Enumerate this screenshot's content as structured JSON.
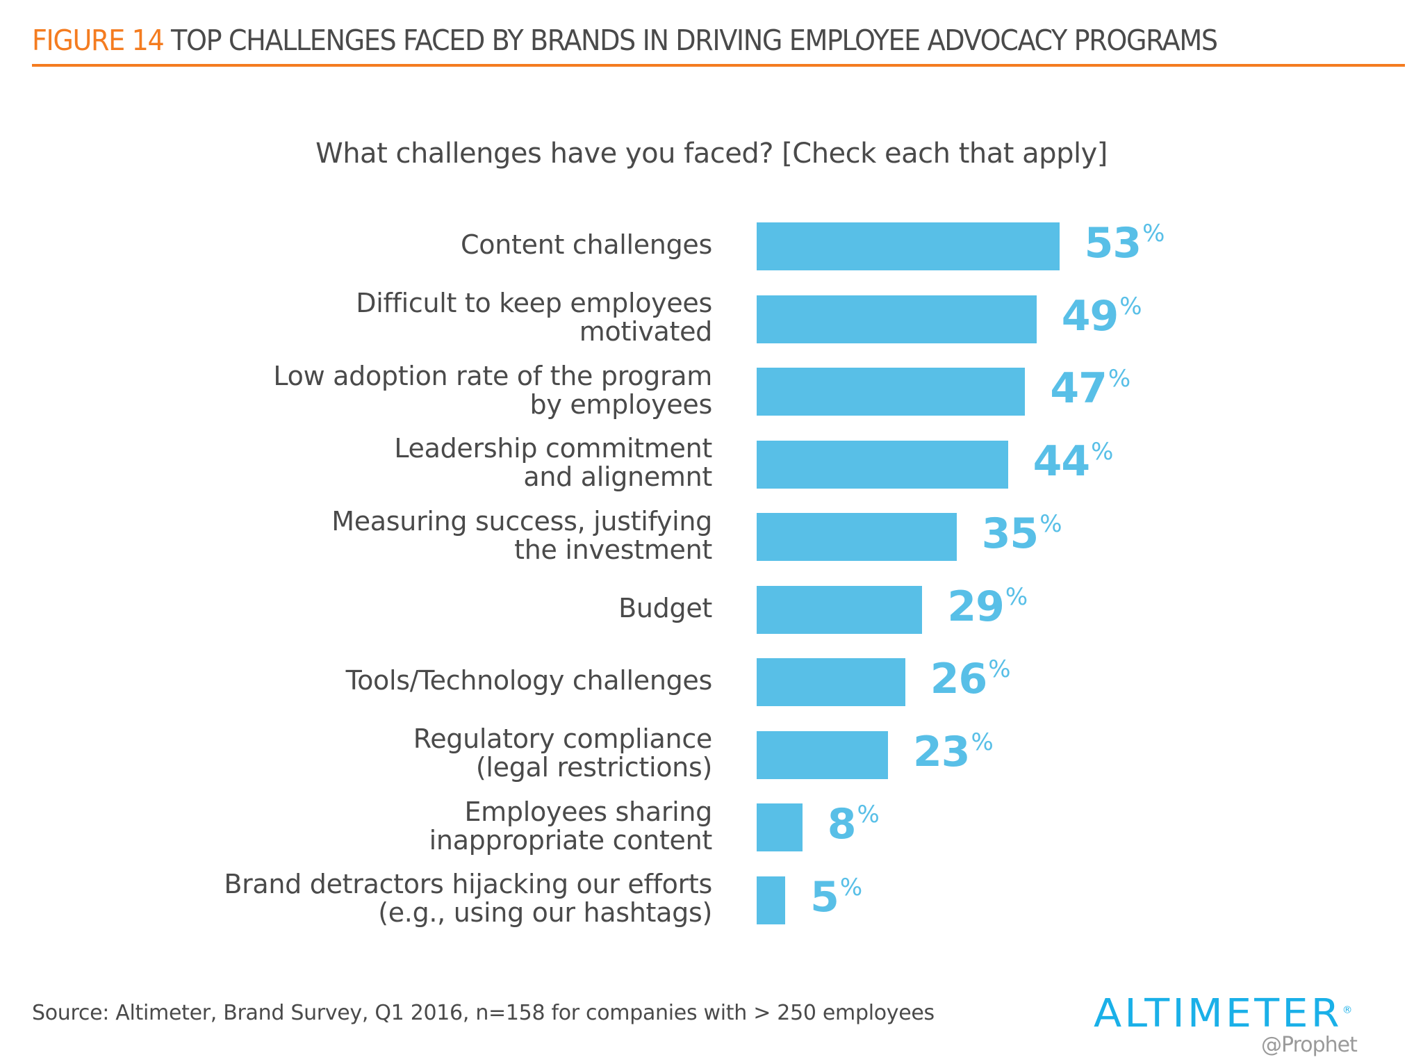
{
  "header": {
    "figure_label": "FIGURE 14",
    "title": "TOP CHALLENGES FACED BY BRANDS IN DRIVING EMPLOYEE ADVOCACY PROGRAMS"
  },
  "colors": {
    "accent": "#f47c20",
    "bar": "#58bfe7",
    "text": "#4a4a4a",
    "logo": "#1ab0e8"
  },
  "chart_data": {
    "type": "bar",
    "orientation": "horizontal",
    "title": "What challenges have you faced? [Check each that apply]",
    "categories": [
      [
        "Content challenges"
      ],
      [
        "Difficult to keep employees",
        "motivated"
      ],
      [
        "Low adoption rate of the program",
        "by employees"
      ],
      [
        "Leadership commitment",
        "and alignemnt"
      ],
      [
        "Measuring success, justifying",
        "the investment"
      ],
      [
        "Budget"
      ],
      [
        "Tools/Technology challenges"
      ],
      [
        "Regulatory compliance",
        "(legal restrictions)"
      ],
      [
        "Employees sharing",
        "inappropriate content"
      ],
      [
        "Brand detractors hijacking our efforts",
        "(e.g., using our hashtags)"
      ]
    ],
    "values": [
      53,
      49,
      47,
      44,
      35,
      29,
      26,
      23,
      8,
      5
    ],
    "unit": "%",
    "grid": false,
    "legend": "none"
  },
  "footer": {
    "source": "Source: Altimeter, Brand Survey, Q1 2016, n=158 for companies with > 250 employees",
    "logo": "ALTIMETER",
    "logo_sub": "@Prophet"
  }
}
